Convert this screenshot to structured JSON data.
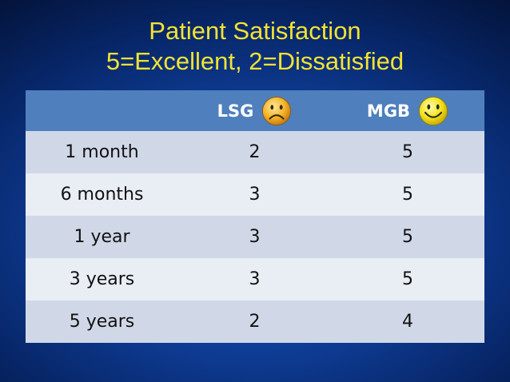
{
  "title": {
    "line1": "Patient Satisfaction",
    "line2": "5=Excellent, 2=Dissatisfied"
  },
  "colors": {
    "title": "#f2e332",
    "header_bg": "#4f80bd",
    "row_odd": "#d0d8e8",
    "row_even": "#e9edf4"
  },
  "table": {
    "headers": [
      "",
      "LSG",
      "MGB"
    ],
    "header_icons": [
      "",
      "frown-face-icon",
      "smile-face-icon"
    ],
    "rows": [
      {
        "period": "1 month",
        "lsg": "2",
        "mgb": "5"
      },
      {
        "period": "6 months",
        "lsg": "3",
        "mgb": "5"
      },
      {
        "period": "1 year",
        "lsg": "3",
        "mgb": "5"
      },
      {
        "period": "3 years",
        "lsg": "3",
        "mgb": "5"
      },
      {
        "period": "5 years",
        "lsg": "2",
        "mgb": "4"
      }
    ]
  }
}
